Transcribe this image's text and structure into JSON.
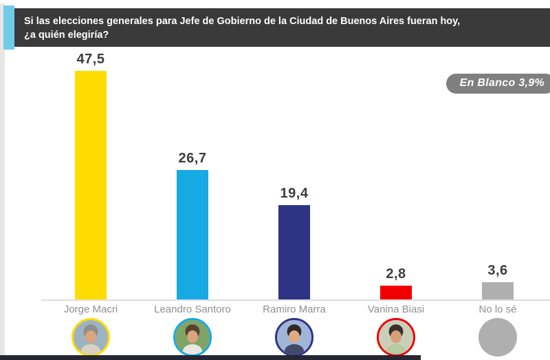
{
  "header": {
    "title_line1": "Si las elecciones generales para Jefe de Gobierno de la Ciudad de Buenos Aires fueran hoy,",
    "title_line2": "¿a quién elegiría?",
    "box_color": "#3A3A3A",
    "accent_color": "#70CBE8"
  },
  "badge": {
    "label": "En Blanco 3,9%",
    "color": "#7F7F7F"
  },
  "chart_data": {
    "type": "bar",
    "title": "Si las elecciones generales para Jefe de Gobierno de la Ciudad de Buenos Aires fueran hoy, ¿a quién elegiría?",
    "categories": [
      "Jorge Macri",
      "Leandro Santoro",
      "Ramiro Marra",
      "Vanina Biasi",
      "No lo sé"
    ],
    "values": [
      47.5,
      26.7,
      19.4,
      2.8,
      3.6
    ],
    "value_labels": [
      "47,5",
      "26,7",
      "19,4",
      "2,8",
      "3,6"
    ],
    "bar_colors": [
      "#FFDC00",
      "#16A9E4",
      "#2F3384",
      "#F10000",
      "#AFAFAF"
    ],
    "annotations": [
      "En Blanco 3,9%"
    ],
    "ylim": [
      0,
      50
    ],
    "grid": false,
    "legend": false,
    "value_text_color": "#3C3C3B",
    "category_text_color": "#8F8F8F",
    "baseline_color": "#DCDCDC"
  },
  "avatars": [
    {
      "candidate": "Jorge Macri",
      "style": "photo",
      "ring": "#FFDC00",
      "bg": "#9DB3BF",
      "hair": "#8E8E8E",
      "skin": "#D9A57E",
      "shirt": "#D8D2C4"
    },
    {
      "candidate": "Leandro Santoro",
      "style": "photo",
      "ring": "#16A9E4",
      "bg": "#7FA466",
      "hair": "#5A4231",
      "skin": "#D9A57E",
      "shirt": "#E8E8E2"
    },
    {
      "candidate": "Ramiro Marra",
      "style": "photo",
      "ring": "#2F3384",
      "bg": "#9FB6D9",
      "hair": "#2E2A28",
      "skin": "#E0AA82",
      "shirt": "#3E4A66"
    },
    {
      "candidate": "Vanina Biasi",
      "style": "photo",
      "ring": "#F10000",
      "bg": "#C9CFB9",
      "hair": "#3A302C",
      "skin": "#D8A078",
      "shirt": "#B9C9A0"
    },
    {
      "candidate": "No lo sé",
      "style": "plain",
      "ring": "none",
      "bg": "#AFAFAF"
    }
  ]
}
